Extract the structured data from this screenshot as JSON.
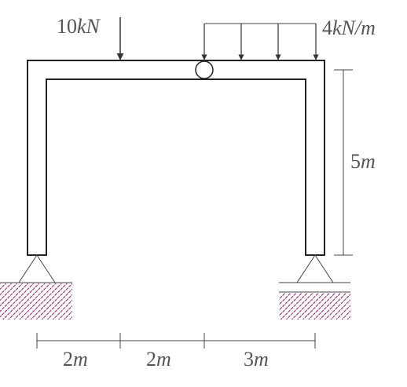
{
  "labels": {
    "point_load_value": "10",
    "point_load_unit": "kN",
    "dist_load_value": "4",
    "dist_load_unit": "kN/m",
    "height_value": "5",
    "height_unit": "m",
    "span1_value": "2",
    "span1_unit": "m",
    "span2_value": "2",
    "span2_unit": "m",
    "span3_value": "3",
    "span3_unit": "m"
  },
  "colors": {
    "frame": "#222222",
    "text": "#555555",
    "hatch": "#8b1a6b"
  }
}
